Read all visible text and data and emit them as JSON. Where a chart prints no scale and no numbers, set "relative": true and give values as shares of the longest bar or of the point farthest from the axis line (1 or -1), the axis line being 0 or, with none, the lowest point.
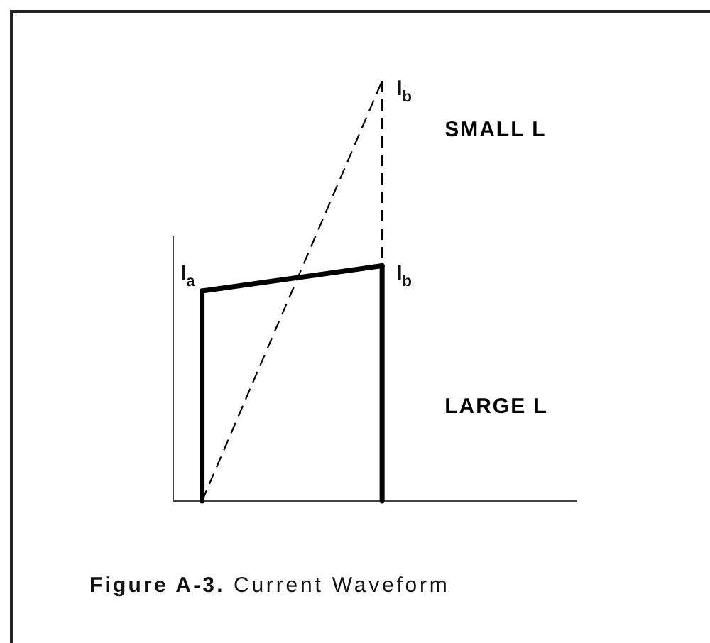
{
  "chart_data": {
    "type": "line",
    "relative": true,
    "categories": [
      null,
      null
    ],
    "marker": "none",
    "annotations": [
      "I$_{a}$",
      "I$_{b}$",
      "I$_{b}$",
      "Figure A-3. Current Waveform"
    ],
    "series": [
      {
        "name": "SMALL L",
        "color": "#000000",
        "line_style": "dashed",
        "values": [
          0,
          1
        ]
      },
      {
        "name": "LARGE L",
        "color": "#000000",
        "line_style": "solid",
        "values": [
          0.5,
          0.56
        ]
      }
    ]
  }
}
